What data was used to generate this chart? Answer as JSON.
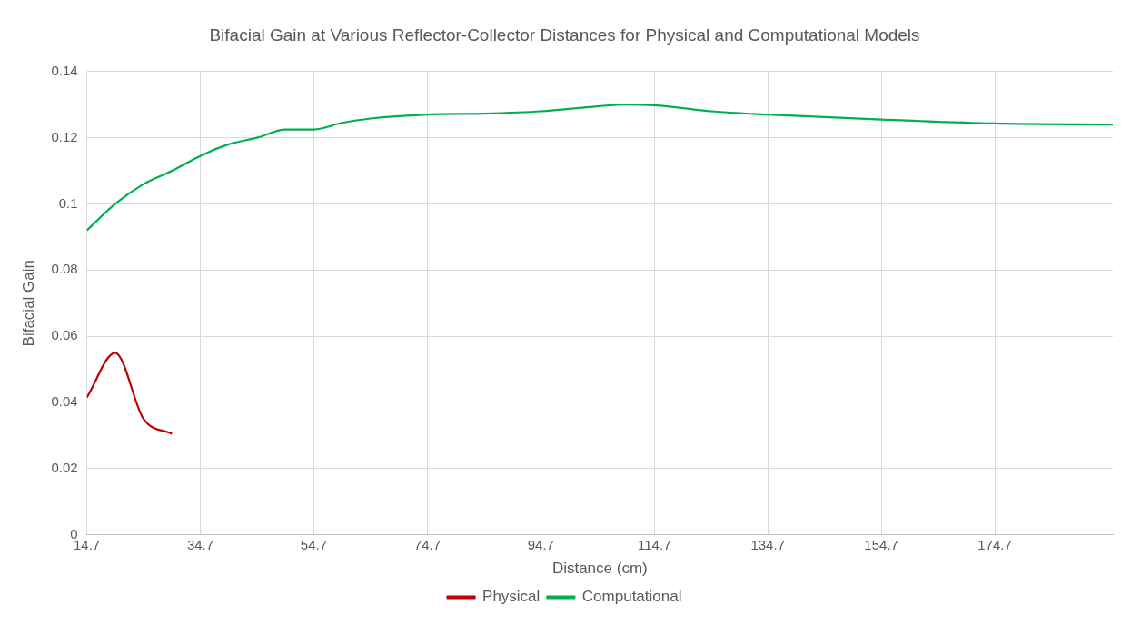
{
  "chart_data": {
    "type": "line",
    "title": "Bifacial Gain at Various Reflector-Collector Distances for Physical and Computational Models",
    "xlabel": "Distance (cm)",
    "ylabel": "Bifacial Gain",
    "xlim": [
      14.7,
      195.5
    ],
    "xticks": [
      14.7,
      34.7,
      54.7,
      74.7,
      94.7,
      114.7,
      134.7,
      154.7,
      174.7
    ],
    "ylim": [
      0,
      0.14
    ],
    "yticks": [
      0,
      0.02,
      0.04,
      0.06,
      0.08,
      0.1,
      0.12,
      0.14
    ],
    "grid": true,
    "legend": "bottom",
    "marker": "none",
    "line_style": "solid",
    "series": [
      {
        "name": "Physical",
        "color": "#c00000",
        "x": [
          14.7,
          19.7,
          24.7,
          29.7
        ],
        "values": [
          0.0415,
          0.055,
          0.035,
          0.0305
        ]
      },
      {
        "name": "Computational",
        "color": "#00b050",
        "x": [
          14.7,
          19.7,
          24.7,
          29.7,
          34.7,
          39.7,
          44.7,
          49.7,
          54.7,
          59.7,
          64.7,
          74.7,
          84.7,
          94.7,
          104.7,
          109.7,
          114.7,
          124.7,
          134.7,
          154.7,
          174.7,
          195.5
        ],
        "values": [
          0.092,
          0.1,
          0.106,
          0.11,
          0.1145,
          0.118,
          0.12,
          0.1225,
          0.1225,
          0.1245,
          0.1258,
          0.127,
          0.1273,
          0.128,
          0.1295,
          0.13,
          0.1298,
          0.128,
          0.127,
          0.1255,
          0.1243,
          0.124
        ]
      }
    ]
  }
}
